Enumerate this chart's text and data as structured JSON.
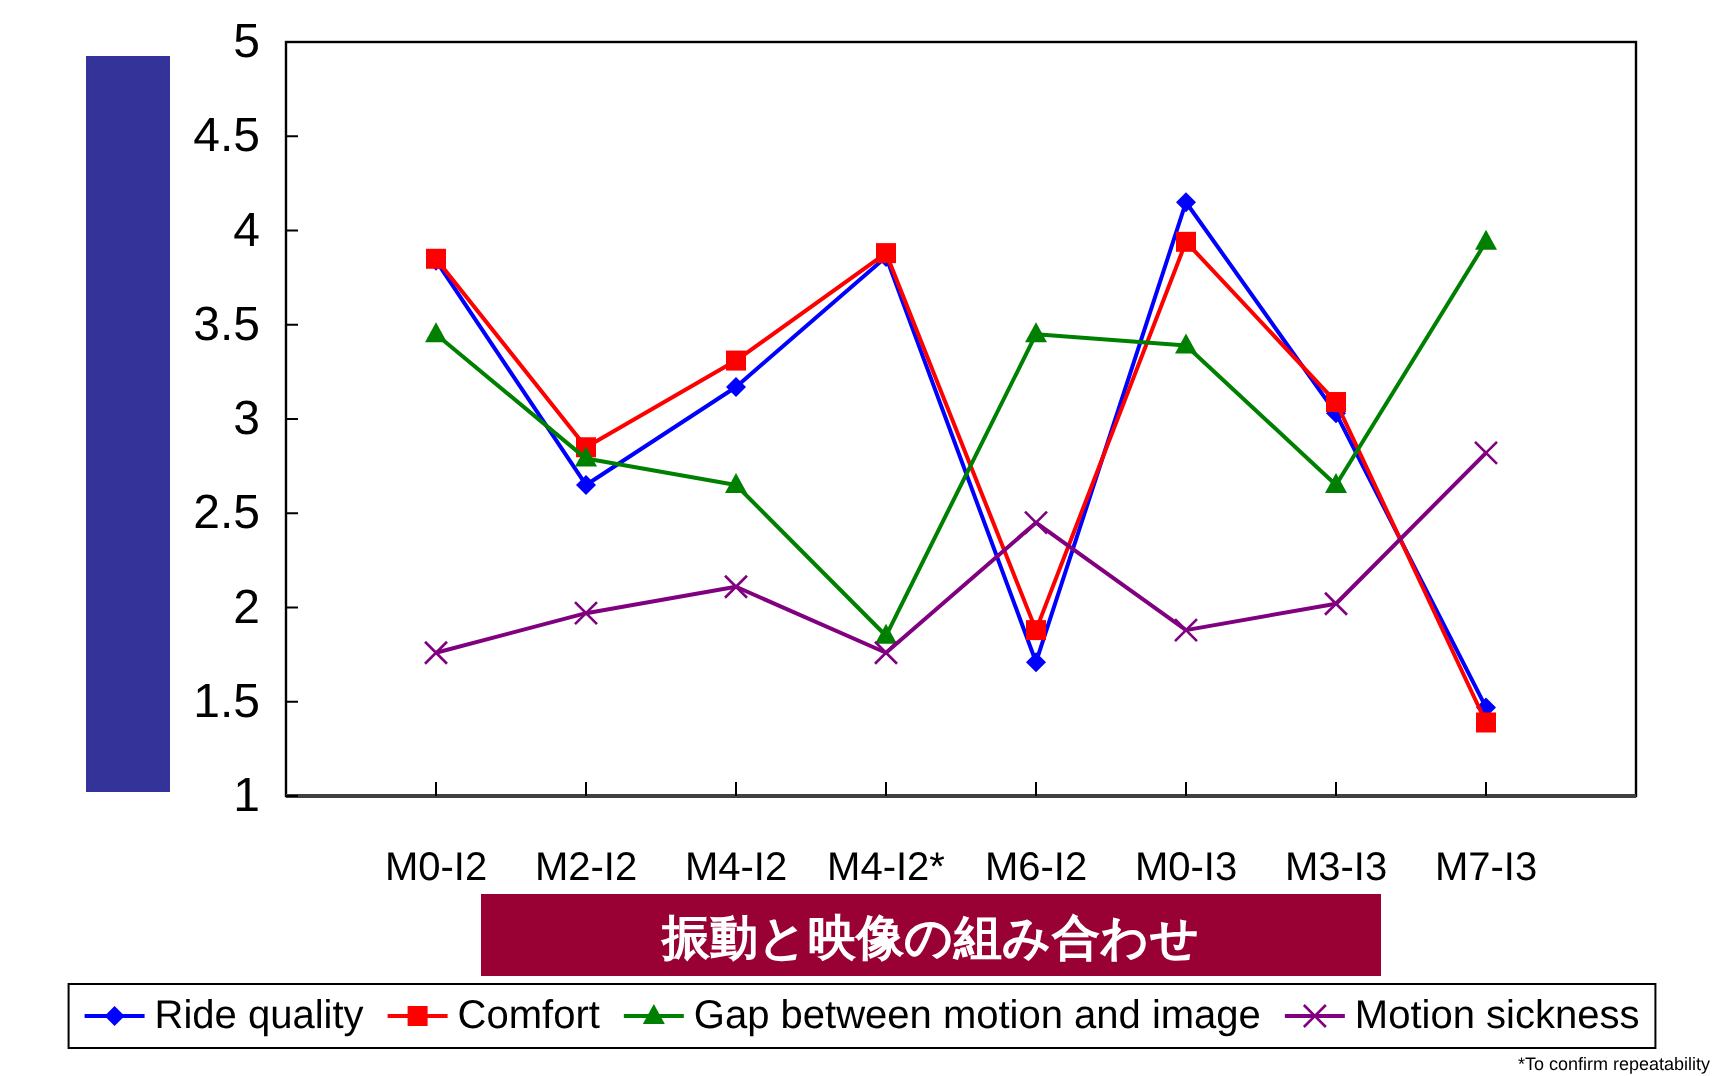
{
  "chart_data": {
    "type": "line",
    "xlabel": "振動と映像の組み合わせ",
    "categories": [
      "M0-I2",
      "M2-I2",
      "M4-I2",
      "M4-I2*",
      "M6-I2",
      "M0-I3",
      "M3-I3",
      "M7-I3"
    ],
    "series": [
      {
        "name": "Ride quality",
        "color": "#0000ff",
        "marker": "diamond",
        "values": [
          3.84,
          2.65,
          3.17,
          3.86,
          1.71,
          4.15,
          3.03,
          1.47
        ]
      },
      {
        "name": "Comfort",
        "color": "#ff0000",
        "marker": "square",
        "values": [
          3.85,
          2.85,
          3.31,
          3.88,
          1.88,
          3.94,
          3.09,
          1.39
        ]
      },
      {
        "name": "Gap between motion and image",
        "color": "#008000",
        "marker": "triangle",
        "values": [
          3.45,
          2.79,
          2.65,
          1.85,
          3.45,
          3.39,
          2.65,
          3.94
        ]
      },
      {
        "name": "Motion sickness",
        "color": "#800080",
        "marker": "cross",
        "values": [
          1.76,
          1.97,
          2.11,
          1.76,
          2.45,
          1.88,
          2.02,
          2.82
        ]
      }
    ],
    "ylim": [
      1,
      5
    ],
    "yticks": [
      1,
      1.5,
      2,
      2.5,
      3,
      3.5,
      4,
      4.5,
      5
    ],
    "legend": "bottom",
    "line_style": "solid",
    "annotations": [
      "*To confirm repeatability"
    ]
  }
}
